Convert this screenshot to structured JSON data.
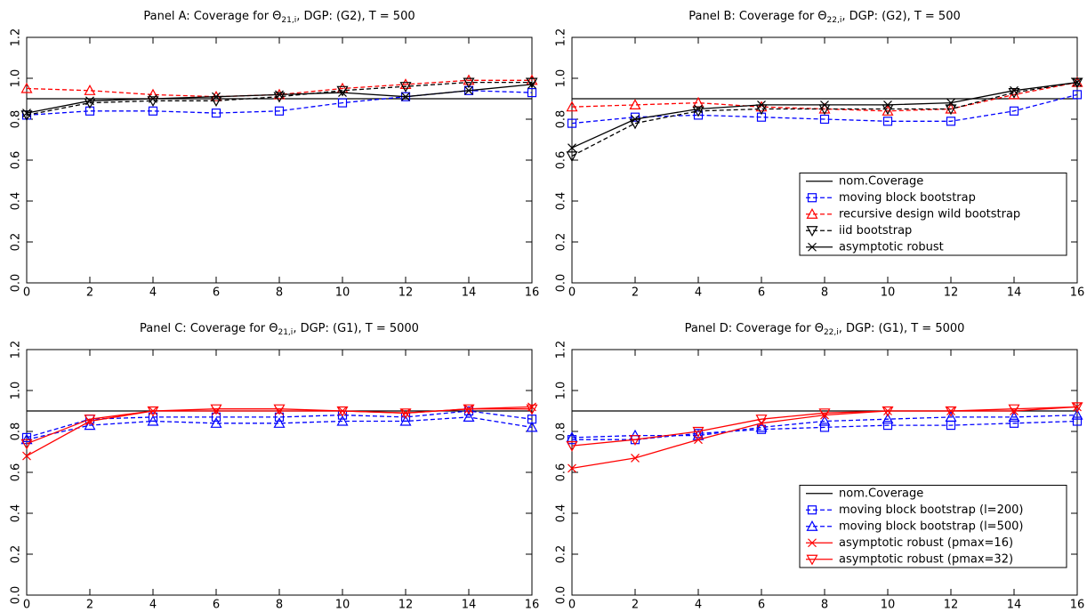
{
  "chart_data": [
    {
      "type": "line",
      "title_parts": [
        "Panel A: Coverage for Θ",
        "21,i",
        ", DGP: (G2), T = 500"
      ],
      "x": [
        0,
        2,
        4,
        6,
        8,
        10,
        12,
        14,
        16
      ],
      "xlim": [
        0,
        16
      ],
      "xticks": [
        0,
        2,
        4,
        6,
        8,
        10,
        12,
        14,
        16
      ],
      "ylim": [
        0,
        1.2
      ],
      "yticks": [
        {
          "value": 0,
          "label": "0.0"
        },
        0.2,
        0.4,
        0.6,
        0.8,
        {
          "value": 1,
          "label": "1.0"
        },
        1.2
      ],
      "series": [
        {
          "color": "#000000",
          "dash": false,
          "marker": null,
          "values": [
            0.9,
            0.9,
            0.9,
            0.9,
            0.9,
            0.9,
            0.9,
            0.9,
            0.9
          ]
        },
        {
          "color": "#0000ff",
          "dash": true,
          "marker": "square",
          "values": [
            0.82,
            0.84,
            0.84,
            0.83,
            0.84,
            0.88,
            0.91,
            0.94,
            0.93
          ]
        },
        {
          "color": "#ff0000",
          "dash": true,
          "marker": "triangle",
          "values": [
            0.95,
            0.94,
            0.92,
            0.91,
            0.92,
            0.95,
            0.97,
            0.99,
            0.99
          ]
        },
        {
          "color": "#000000",
          "dash": true,
          "marker": "triangle-down",
          "values": [
            0.82,
            0.88,
            0.89,
            0.89,
            0.91,
            0.94,
            0.96,
            0.98,
            0.98
          ]
        },
        {
          "color": "#000000",
          "dash": false,
          "marker": "x",
          "values": [
            0.83,
            0.89,
            0.9,
            0.91,
            0.92,
            0.93,
            0.91,
            0.94,
            0.97
          ]
        }
      ]
    },
    {
      "type": "line",
      "title_parts": [
        "Panel B: Coverage for Θ",
        "22,i",
        ", DGP: (G2), T = 500"
      ],
      "x": [
        0,
        2,
        4,
        6,
        8,
        10,
        12,
        14,
        16
      ],
      "xlim": [
        0,
        16
      ],
      "xticks": [
        0,
        2,
        4,
        6,
        8,
        10,
        12,
        14,
        16
      ],
      "ylim": [
        0,
        1.2
      ],
      "yticks": [
        {
          "value": 0,
          "label": "0.0"
        },
        0.2,
        0.4,
        0.6,
        0.8,
        {
          "value": 1,
          "label": "1.0"
        },
        1.2
      ],
      "legend": "lower right",
      "series": [
        {
          "name": "nom.Coverage",
          "color": "#000000",
          "dash": false,
          "marker": null,
          "values": [
            0.9,
            0.9,
            0.9,
            0.9,
            0.9,
            0.9,
            0.9,
            0.9,
            0.9
          ]
        },
        {
          "name": "moving block bootstrap",
          "color": "#0000ff",
          "dash": true,
          "marker": "square",
          "values": [
            0.78,
            0.81,
            0.82,
            0.81,
            0.8,
            0.79,
            0.79,
            0.84,
            0.92
          ]
        },
        {
          "name": "recursive design wild bootstrap",
          "color": "#ff0000",
          "dash": true,
          "marker": "triangle",
          "values": [
            0.86,
            0.87,
            0.88,
            0.86,
            0.85,
            0.84,
            0.85,
            0.92,
            0.98
          ]
        },
        {
          "name": "iid bootstrap",
          "color": "#000000",
          "dash": true,
          "marker": "triangle-down",
          "values": [
            0.62,
            0.78,
            0.84,
            0.85,
            0.85,
            0.85,
            0.85,
            0.93,
            0.98
          ]
        },
        {
          "name": "asymptotic robust",
          "color": "#000000",
          "dash": false,
          "marker": "x",
          "values": [
            0.66,
            0.8,
            0.85,
            0.87,
            0.87,
            0.87,
            0.88,
            0.94,
            0.98
          ]
        }
      ]
    },
    {
      "type": "line",
      "title_parts": [
        "Panel C: Coverage for Θ",
        "21,i",
        ", DGP: (G1), T = 5000"
      ],
      "x": [
        0,
        2,
        4,
        6,
        8,
        10,
        12,
        14,
        16
      ],
      "xlim": [
        0,
        16
      ],
      "xticks": [
        0,
        2,
        4,
        6,
        8,
        10,
        12,
        14,
        16
      ],
      "ylim": [
        0,
        1.2
      ],
      "yticks": [
        {
          "value": 0,
          "label": "0.0"
        },
        0.2,
        0.4,
        0.6,
        0.8,
        {
          "value": 1,
          "label": "1.0"
        },
        1.2
      ],
      "series": [
        {
          "color": "#000000",
          "dash": false,
          "marker": null,
          "values": [
            0.9,
            0.9,
            0.9,
            0.9,
            0.9,
            0.9,
            0.9,
            0.9,
            0.9
          ]
        },
        {
          "color": "#0000ff",
          "dash": true,
          "marker": "square",
          "values": [
            0.77,
            0.86,
            0.87,
            0.87,
            0.87,
            0.88,
            0.87,
            0.9,
            0.86
          ]
        },
        {
          "color": "#0000ff",
          "dash": true,
          "marker": "triangle",
          "values": [
            0.76,
            0.83,
            0.85,
            0.84,
            0.84,
            0.85,
            0.85,
            0.87,
            0.82
          ]
        },
        {
          "color": "#ff0000",
          "dash": false,
          "marker": "x",
          "values": [
            0.68,
            0.85,
            0.9,
            0.9,
            0.9,
            0.9,
            0.89,
            0.91,
            0.92
          ]
        },
        {
          "color": "#ff0000",
          "dash": false,
          "marker": "triangle-down",
          "values": [
            0.74,
            0.86,
            0.9,
            0.91,
            0.91,
            0.9,
            0.89,
            0.91,
            0.91
          ]
        }
      ]
    },
    {
      "type": "line",
      "title_parts": [
        "Panel D: Coverage for Θ",
        "22,i",
        ", DGP: (G1), T = 5000"
      ],
      "x": [
        0,
        2,
        4,
        6,
        8,
        10,
        12,
        14,
        16
      ],
      "xlim": [
        0,
        16
      ],
      "xticks": [
        0,
        2,
        4,
        6,
        8,
        10,
        12,
        14,
        16
      ],
      "ylim": [
        0,
        1.2
      ],
      "yticks": [
        {
          "value": 0,
          "label": "0.0"
        },
        0.2,
        0.4,
        0.6,
        0.8,
        {
          "value": 1,
          "label": "1.0"
        },
        1.2
      ],
      "legend": "lower right",
      "series": [
        {
          "name": "nom.Coverage",
          "color": "#000000",
          "dash": false,
          "marker": null,
          "values": [
            0.9,
            0.9,
            0.9,
            0.9,
            0.9,
            0.9,
            0.9,
            0.9,
            0.9
          ]
        },
        {
          "name": "moving block bootstrap (l=200)",
          "color": "#0000ff",
          "dash": true,
          "marker": "square",
          "values": [
            0.76,
            0.76,
            0.79,
            0.81,
            0.82,
            0.83,
            0.83,
            0.84,
            0.85
          ]
        },
        {
          "name": "moving block bootstrap (l=500)",
          "color": "#0000ff",
          "dash": true,
          "marker": "triangle",
          "values": [
            0.77,
            0.78,
            0.78,
            0.82,
            0.85,
            0.86,
            0.87,
            0.87,
            0.88
          ]
        },
        {
          "name": "asymptotic robust (pmax=16)",
          "color": "#ff0000",
          "dash": false,
          "marker": "x",
          "values": [
            0.62,
            0.67,
            0.76,
            0.84,
            0.88,
            0.9,
            0.9,
            0.9,
            0.92
          ]
        },
        {
          "name": "asymptotic robust (pmax=32)",
          "color": "#ff0000",
          "dash": false,
          "marker": "triangle-down",
          "values": [
            0.73,
            0.76,
            0.8,
            0.86,
            0.89,
            0.9,
            0.9,
            0.91,
            0.92
          ]
        }
      ]
    }
  ]
}
